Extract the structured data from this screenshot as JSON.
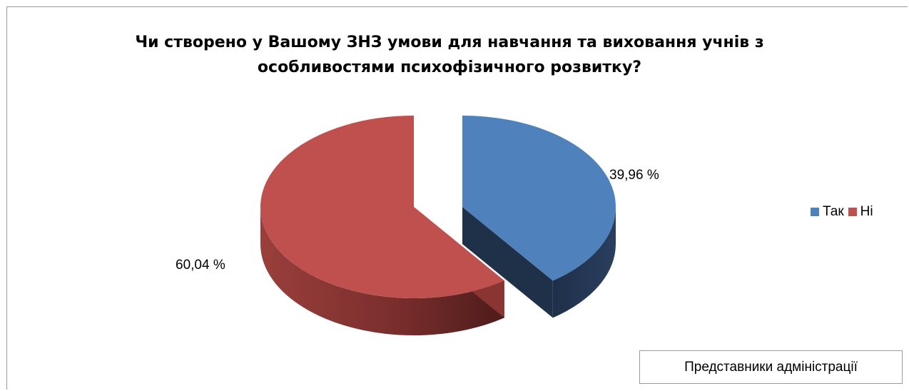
{
  "chart_data": {
    "type": "pie",
    "title": "Чи створено у Вашому ЗНЗ умови для навчання та виховання учнів з особливостями психофізичного розвитку?",
    "title_lines": [
      "Чи створено у Вашому ЗНЗ умови для навчання та виховання учнів з",
      "особливостями психофізичного розвитку?"
    ],
    "categories": [
      "Так",
      "Ні"
    ],
    "values": [
      39.96,
      60.04
    ],
    "data_labels": [
      "39,96 %",
      "60,04 %"
    ],
    "colors": [
      "#4f81bd",
      "#c0504d"
    ],
    "legend_position": "right",
    "style": "3d-exploded"
  },
  "footnote": "Представники адміністрації"
}
